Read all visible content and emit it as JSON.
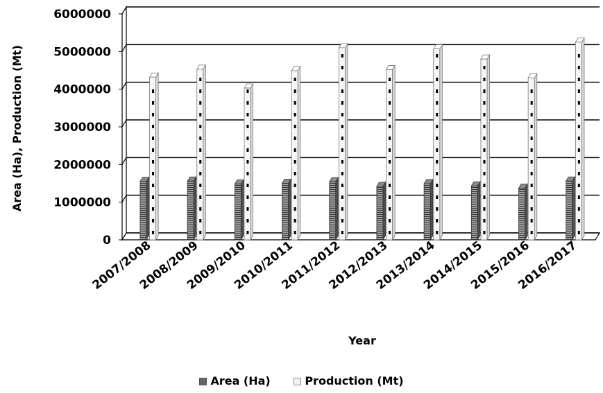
{
  "chart_data": {
    "type": "bar",
    "categories": [
      "2007/2008",
      "2008/2009",
      "2009/2010",
      "2010/2011",
      "2011/2012",
      "2012/2013",
      "2013/2014",
      "2014/2015",
      "2015/2016",
      "2016/2017"
    ],
    "series": [
      {
        "name": "Area (Ha)",
        "values": [
          1550000,
          1560000,
          1480000,
          1500000,
          1540000,
          1420000,
          1490000,
          1430000,
          1370000,
          1560000
        ],
        "color": "#666666"
      },
      {
        "name": "Production (Mt)",
        "values": [
          4320000,
          4530000,
          4030000,
          4490000,
          5100000,
          4520000,
          5070000,
          4800000,
          4300000,
          5250000
        ],
        "color": "#f2f2f2"
      }
    ],
    "y_ticks": [
      "0",
      "1000000",
      "2000000",
      "3000000",
      "4000000",
      "5000000",
      "6000000"
    ],
    "ylim": [
      0,
      6000000
    ],
    "xlabel": "Year",
    "ylabel": "Area (Ha), Production (Mt)",
    "grid": true,
    "legend_position": "bottom",
    "style": "3d-clustered-column"
  }
}
